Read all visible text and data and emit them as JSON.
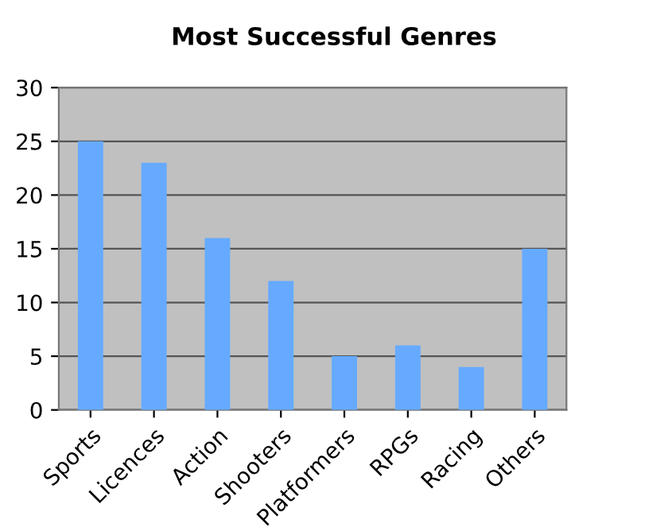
{
  "chart_data": {
    "type": "bar",
    "title": "Most Successful Genres",
    "categories": [
      "Sports",
      "Licences",
      "Action",
      "Shooters",
      "Platformers",
      "RPGs",
      "Racing",
      "Others"
    ],
    "values": [
      25,
      23,
      16,
      12,
      5,
      6,
      4,
      15
    ],
    "color": "#66aaff",
    "ylim": [
      0,
      30
    ],
    "yticks": [
      0,
      5,
      10,
      15,
      20,
      25,
      30
    ],
    "grid": "y",
    "legend": false
  }
}
